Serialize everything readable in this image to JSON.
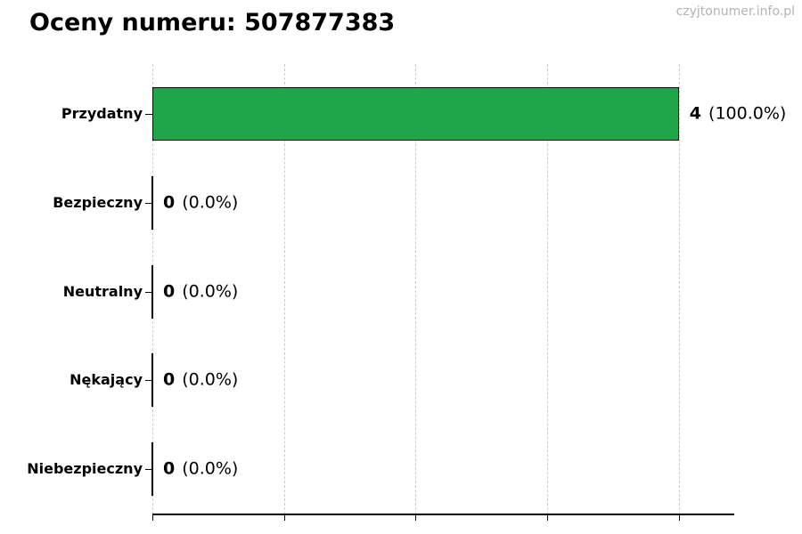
{
  "page": {
    "title": "Oceny numeru: 507877383",
    "watermark": "czyjtonumer.info.pl"
  },
  "chart_data": {
    "type": "bar",
    "orientation": "horizontal",
    "title": "Oceny numeru: 507877383",
    "xlabel": "",
    "ylabel": "",
    "categories": [
      "Przydatny",
      "Bezpieczny",
      "Neutralny",
      "Nękający",
      "Niebezpieczny"
    ],
    "values": [
      4,
      0,
      0,
      0,
      0
    ],
    "value_labels": [
      {
        "count": "4",
        "percent": "(100.0%)"
      },
      {
        "count": "0",
        "percent": "(0.0%)"
      },
      {
        "count": "0",
        "percent": "(0.0%)"
      },
      {
        "count": "0",
        "percent": "(0.0%)"
      },
      {
        "count": "0",
        "percent": "(0.0%)"
      }
    ],
    "total": 4,
    "xlim": [
      0,
      4.41
    ],
    "xticks": [
      0,
      1,
      2,
      3,
      4
    ],
    "xtick_labels_visible": false,
    "grid": "vertical-dashed",
    "legend": "none",
    "colors": {
      "bar_fill": "#1fa64a",
      "bar_edge": "#000000",
      "gridline": "#cdcdcd",
      "axis": "#000000",
      "text": "#000000",
      "watermark": "#b3b3b3",
      "background": "#ffffff"
    }
  }
}
